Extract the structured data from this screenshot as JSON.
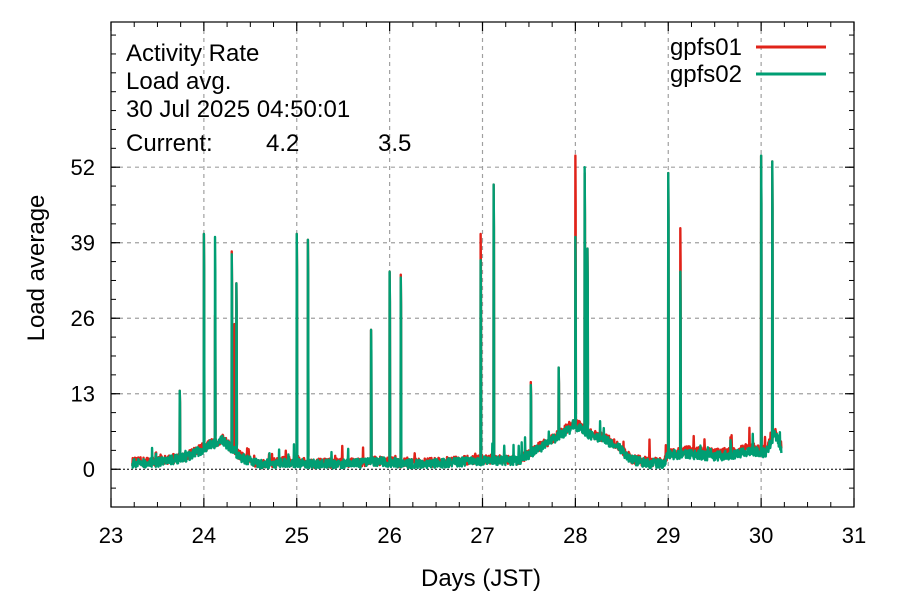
{
  "chart_data": {
    "type": "line",
    "title_lines": [
      "Activity Rate",
      "Load avg.",
      "30 Jul 2025 04:50:01"
    ],
    "current_label": "Current:",
    "xlabel": "Days (JST)",
    "ylabel": "Load average",
    "xlim": [
      23,
      31
    ],
    "ylim": [
      -6.5,
      77
    ],
    "x_ticks": [
      23,
      24,
      25,
      26,
      27,
      28,
      29,
      30,
      31
    ],
    "x_tick_labels": [
      "23",
      "24",
      "25",
      "26",
      "27",
      "28",
      "29",
      "30",
      "31"
    ],
    "y_ticks": [
      0,
      13,
      26,
      39,
      52
    ],
    "y_tick_labels": [
      "0",
      "13",
      "26",
      "39",
      "52"
    ],
    "grid": true,
    "zero_line": true,
    "legend_position": "top-right",
    "series": [
      {
        "name": "gpfs01",
        "color": "#e0231a",
        "current": "4.2",
        "spikes": [
          [
            23.48,
            2.8
          ],
          [
            23.74,
            13.5
          ],
          [
            24.0,
            40.5
          ],
          [
            24.12,
            26.5
          ],
          [
            24.3,
            37.5
          ],
          [
            24.33,
            25
          ],
          [
            24.35,
            32
          ],
          [
            25.0,
            40.5
          ],
          [
            25.12,
            39.5
          ],
          [
            25.8,
            24
          ],
          [
            26.0,
            34
          ],
          [
            26.12,
            33.5
          ],
          [
            26.98,
            40.5
          ],
          [
            27.12,
            49
          ],
          [
            27.52,
            15
          ],
          [
            27.82,
            17.5
          ],
          [
            28.0,
            54
          ],
          [
            28.1,
            51
          ],
          [
            28.13,
            38
          ],
          [
            28.12,
            27
          ],
          [
            29.0,
            51
          ],
          [
            29.13,
            41.5
          ],
          [
            29.67,
            5.5
          ],
          [
            30.0,
            54
          ],
          [
            30.12,
            53
          ]
        ],
        "baseline": [
          [
            23.23,
            1.2
          ],
          [
            23.5,
            1.4
          ],
          [
            23.8,
            2.2
          ],
          [
            24.0,
            3.8
          ],
          [
            24.2,
            5.2
          ],
          [
            24.4,
            2.2
          ],
          [
            24.6,
            0.9
          ],
          [
            24.9,
            1.4
          ],
          [
            25.2,
            1.0
          ],
          [
            25.6,
            1.1
          ],
          [
            25.9,
            1.5
          ],
          [
            26.2,
            1.0
          ],
          [
            26.6,
            1.3
          ],
          [
            26.9,
            1.6
          ],
          [
            27.2,
            1.8
          ],
          [
            27.4,
            1.6
          ],
          [
            27.6,
            3.8
          ],
          [
            27.75,
            5.2
          ],
          [
            27.9,
            7.0
          ],
          [
            28.0,
            8.0
          ],
          [
            28.15,
            6.2
          ],
          [
            28.3,
            5.5
          ],
          [
            28.45,
            4.2
          ],
          [
            28.6,
            1.8
          ],
          [
            28.8,
            1.2
          ],
          [
            28.95,
            1.2
          ],
          [
            29.0,
            2.8
          ],
          [
            29.2,
            3.2
          ],
          [
            29.5,
            2.8
          ],
          [
            29.7,
            3.0
          ],
          [
            29.9,
            3.8
          ],
          [
            30.05,
            3.2
          ],
          [
            30.15,
            6.5
          ],
          [
            30.22,
            4.0
          ]
        ]
      },
      {
        "name": "gpfs02",
        "color": "#009e73",
        "current": "3.5",
        "spikes": [
          [
            23.48,
            2.3
          ],
          [
            23.74,
            13.5
          ],
          [
            24.0,
            40.5
          ],
          [
            24.12,
            40
          ],
          [
            24.3,
            37
          ],
          [
            24.35,
            32
          ],
          [
            25.0,
            40.5
          ],
          [
            25.12,
            39.5
          ],
          [
            25.8,
            24
          ],
          [
            26.0,
            34
          ],
          [
            26.12,
            33
          ],
          [
            26.98,
            36
          ],
          [
            27.12,
            49
          ],
          [
            27.52,
            14.5
          ],
          [
            27.82,
            17.5
          ],
          [
            28.0,
            40
          ],
          [
            28.1,
            52
          ],
          [
            28.13,
            38
          ],
          [
            29.0,
            51
          ],
          [
            29.13,
            34
          ],
          [
            29.67,
            5
          ],
          [
            30.0,
            54
          ],
          [
            30.12,
            53
          ]
        ],
        "baseline": [
          [
            23.23,
            1.0
          ],
          [
            23.5,
            1.2
          ],
          [
            23.8,
            2.0
          ],
          [
            24.0,
            3.5
          ],
          [
            24.2,
            5.0
          ],
          [
            24.4,
            2.0
          ],
          [
            24.6,
            0.8
          ],
          [
            24.9,
            1.2
          ],
          [
            25.2,
            0.9
          ],
          [
            25.6,
            0.9
          ],
          [
            25.9,
            1.3
          ],
          [
            26.2,
            0.9
          ],
          [
            26.6,
            1.1
          ],
          [
            26.9,
            1.4
          ],
          [
            27.2,
            1.5
          ],
          [
            27.4,
            1.4
          ],
          [
            27.6,
            3.5
          ],
          [
            27.75,
            5.0
          ],
          [
            27.9,
            6.5
          ],
          [
            28.0,
            7.5
          ],
          [
            28.15,
            6.0
          ],
          [
            28.3,
            5.2
          ],
          [
            28.45,
            4.0
          ],
          [
            28.6,
            1.6
          ],
          [
            28.8,
            1.0
          ],
          [
            28.95,
            1.0
          ],
          [
            29.0,
            2.5
          ],
          [
            29.2,
            2.6
          ],
          [
            29.5,
            2.2
          ],
          [
            29.7,
            2.5
          ],
          [
            29.9,
            3.2
          ],
          [
            30.05,
            2.8
          ],
          [
            30.15,
            6.0
          ],
          [
            30.22,
            3.5
          ]
        ]
      }
    ]
  }
}
